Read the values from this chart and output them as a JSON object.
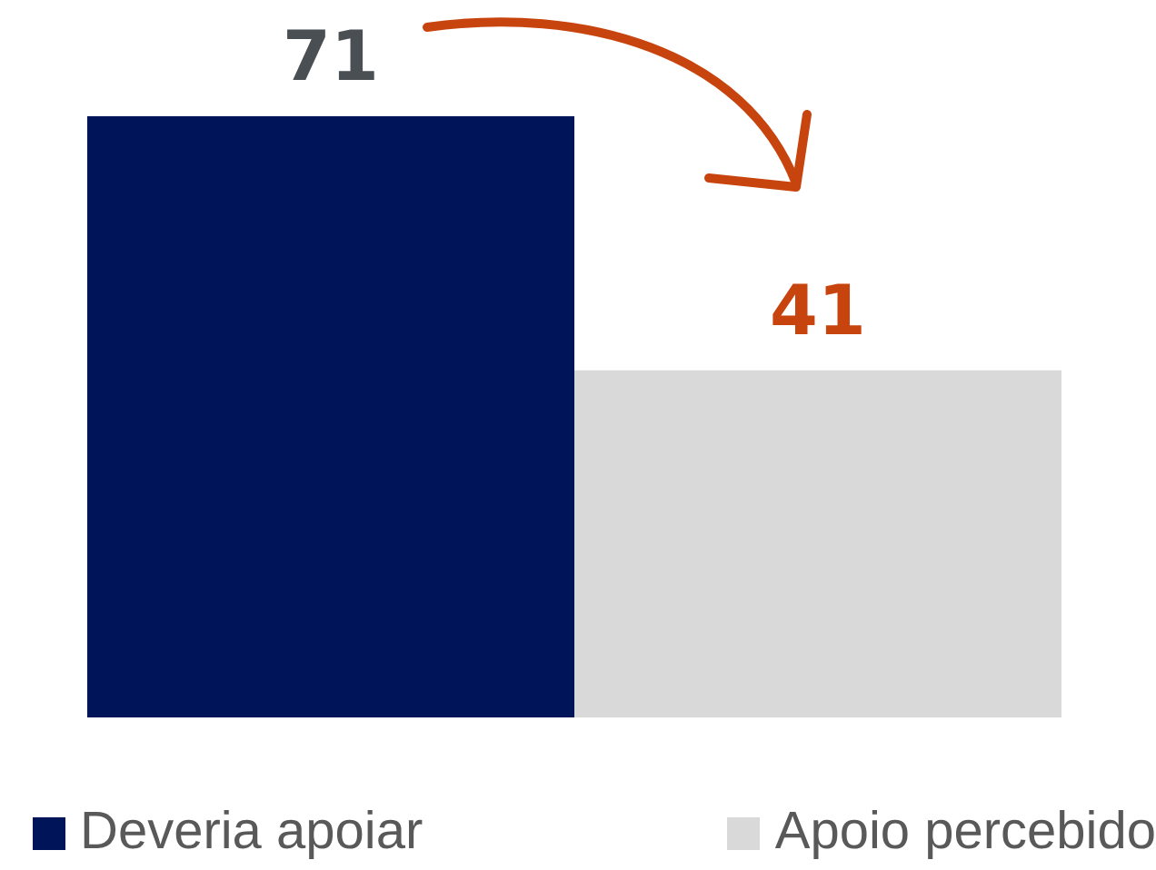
{
  "chart_data": {
    "type": "bar",
    "categories": [
      null
    ],
    "series": [
      {
        "name": "Deveria apoiar",
        "color": "#001459",
        "values": [
          71
        ]
      },
      {
        "name": "Apoio percebido",
        "color": "#d9d9d9",
        "values": [
          41
        ]
      }
    ],
    "data_labels": true,
    "legend": "bottom"
  }
}
